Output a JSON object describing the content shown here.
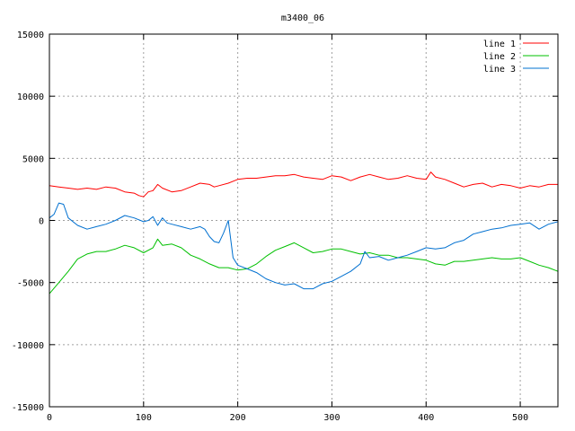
{
  "chart_data": {
    "type": "line",
    "title": "m3400_06",
    "xlabel": "",
    "ylabel": "",
    "xlim": [
      0,
      540
    ],
    "ylim": [
      -15000,
      15000
    ],
    "x_ticks": [
      0,
      100,
      200,
      300,
      400,
      500
    ],
    "y_ticks": [
      -15000,
      -10000,
      -5000,
      0,
      5000,
      10000,
      15000
    ],
    "grid": true,
    "legend_position": "top-right",
    "series": [
      {
        "name": "line 1",
        "color": "#ff0000",
        "points": [
          [
            0,
            2800
          ],
          [
            10,
            2700
          ],
          [
            20,
            2600
          ],
          [
            30,
            2500
          ],
          [
            40,
            2600
          ],
          [
            50,
            2500
          ],
          [
            60,
            2700
          ],
          [
            70,
            2600
          ],
          [
            80,
            2300
          ],
          [
            90,
            2200
          ],
          [
            95,
            2000
          ],
          [
            100,
            1900
          ],
          [
            105,
            2300
          ],
          [
            110,
            2400
          ],
          [
            115,
            2900
          ],
          [
            120,
            2600
          ],
          [
            130,
            2300
          ],
          [
            140,
            2400
          ],
          [
            150,
            2700
          ],
          [
            160,
            3000
          ],
          [
            170,
            2900
          ],
          [
            175,
            2700
          ],
          [
            180,
            2800
          ],
          [
            190,
            3000
          ],
          [
            200,
            3300
          ],
          [
            210,
            3400
          ],
          [
            220,
            3400
          ],
          [
            230,
            3500
          ],
          [
            240,
            3600
          ],
          [
            250,
            3600
          ],
          [
            260,
            3700
          ],
          [
            270,
            3500
          ],
          [
            280,
            3400
          ],
          [
            290,
            3300
          ],
          [
            300,
            3600
          ],
          [
            310,
            3500
          ],
          [
            320,
            3200
          ],
          [
            330,
            3500
          ],
          [
            340,
            3700
          ],
          [
            350,
            3500
          ],
          [
            360,
            3300
          ],
          [
            370,
            3400
          ],
          [
            380,
            3600
          ],
          [
            390,
            3400
          ],
          [
            400,
            3300
          ],
          [
            405,
            3900
          ],
          [
            410,
            3500
          ],
          [
            420,
            3300
          ],
          [
            430,
            3000
          ],
          [
            440,
            2700
          ],
          [
            450,
            2900
          ],
          [
            460,
            3000
          ],
          [
            470,
            2700
          ],
          [
            480,
            2900
          ],
          [
            490,
            2800
          ],
          [
            500,
            2600
          ],
          [
            510,
            2800
          ],
          [
            520,
            2700
          ],
          [
            530,
            2900
          ],
          [
            540,
            2900
          ]
        ]
      },
      {
        "name": "line 2",
        "color": "#00c000",
        "points": [
          [
            0,
            -5900
          ],
          [
            10,
            -5000
          ],
          [
            20,
            -4100
          ],
          [
            30,
            -3100
          ],
          [
            40,
            -2700
          ],
          [
            50,
            -2500
          ],
          [
            60,
            -2500
          ],
          [
            70,
            -2300
          ],
          [
            80,
            -2000
          ],
          [
            90,
            -2200
          ],
          [
            100,
            -2600
          ],
          [
            110,
            -2200
          ],
          [
            115,
            -1500
          ],
          [
            120,
            -2000
          ],
          [
            130,
            -1900
          ],
          [
            140,
            -2200
          ],
          [
            150,
            -2800
          ],
          [
            160,
            -3100
          ],
          [
            170,
            -3500
          ],
          [
            180,
            -3800
          ],
          [
            190,
            -3800
          ],
          [
            200,
            -4000
          ],
          [
            210,
            -3900
          ],
          [
            220,
            -3500
          ],
          [
            230,
            -2900
          ],
          [
            240,
            -2400
          ],
          [
            250,
            -2100
          ],
          [
            260,
            -1800
          ],
          [
            270,
            -2200
          ],
          [
            280,
            -2600
          ],
          [
            290,
            -2500
          ],
          [
            300,
            -2300
          ],
          [
            310,
            -2300
          ],
          [
            320,
            -2500
          ],
          [
            330,
            -2700
          ],
          [
            340,
            -2600
          ],
          [
            350,
            -2800
          ],
          [
            360,
            -2800
          ],
          [
            370,
            -3000
          ],
          [
            380,
            -3000
          ],
          [
            390,
            -3100
          ],
          [
            400,
            -3200
          ],
          [
            410,
            -3500
          ],
          [
            420,
            -3600
          ],
          [
            430,
            -3300
          ],
          [
            440,
            -3300
          ],
          [
            450,
            -3200
          ],
          [
            460,
            -3100
          ],
          [
            470,
            -3000
          ],
          [
            480,
            -3100
          ],
          [
            490,
            -3100
          ],
          [
            500,
            -3000
          ],
          [
            510,
            -3300
          ],
          [
            520,
            -3600
          ],
          [
            530,
            -3800
          ],
          [
            540,
            -4100
          ]
        ]
      },
      {
        "name": "line 3",
        "color": "#0070d0",
        "points": [
          [
            0,
            200
          ],
          [
            5,
            500
          ],
          [
            10,
            1400
          ],
          [
            15,
            1300
          ],
          [
            20,
            200
          ],
          [
            30,
            -400
          ],
          [
            40,
            -700
          ],
          [
            50,
            -500
          ],
          [
            60,
            -300
          ],
          [
            70,
            0
          ],
          [
            80,
            400
          ],
          [
            90,
            200
          ],
          [
            100,
            -100
          ],
          [
            105,
            0
          ],
          [
            110,
            300
          ],
          [
            115,
            -400
          ],
          [
            120,
            200
          ],
          [
            125,
            -200
          ],
          [
            130,
            -300
          ],
          [
            140,
            -500
          ],
          [
            150,
            -700
          ],
          [
            160,
            -500
          ],
          [
            165,
            -700
          ],
          [
            170,
            -1300
          ],
          [
            175,
            -1700
          ],
          [
            180,
            -1800
          ],
          [
            185,
            -1000
          ],
          [
            190,
            0
          ],
          [
            195,
            -3000
          ],
          [
            200,
            -3600
          ],
          [
            210,
            -3900
          ],
          [
            220,
            -4200
          ],
          [
            230,
            -4700
          ],
          [
            240,
            -5000
          ],
          [
            250,
            -5200
          ],
          [
            260,
            -5100
          ],
          [
            270,
            -5500
          ],
          [
            280,
            -5500
          ],
          [
            290,
            -5100
          ],
          [
            300,
            -4900
          ],
          [
            310,
            -4500
          ],
          [
            320,
            -4100
          ],
          [
            330,
            -3500
          ],
          [
            335,
            -2500
          ],
          [
            340,
            -3000
          ],
          [
            350,
            -2900
          ],
          [
            360,
            -3200
          ],
          [
            370,
            -3000
          ],
          [
            380,
            -2800
          ],
          [
            390,
            -2500
          ],
          [
            400,
            -2200
          ],
          [
            410,
            -2300
          ],
          [
            420,
            -2200
          ],
          [
            430,
            -1800
          ],
          [
            440,
            -1600
          ],
          [
            450,
            -1100
          ],
          [
            460,
            -900
          ],
          [
            470,
            -700
          ],
          [
            480,
            -600
          ],
          [
            490,
            -400
          ],
          [
            500,
            -300
          ],
          [
            510,
            -200
          ],
          [
            520,
            -700
          ],
          [
            530,
            -300
          ],
          [
            540,
            -100
          ]
        ]
      }
    ]
  }
}
